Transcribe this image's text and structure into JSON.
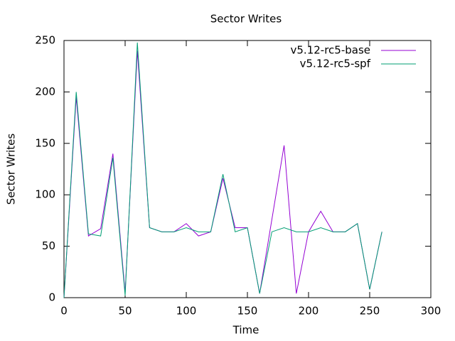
{
  "chart_data": {
    "type": "line",
    "title": "Sector Writes",
    "x_label": "Time",
    "y_label": "Sector Writes",
    "x": [
      0,
      10,
      20,
      30,
      40,
      50,
      60,
      70,
      80,
      90,
      100,
      110,
      120,
      130,
      140,
      150,
      160,
      170,
      180,
      190,
      200,
      210,
      220,
      230,
      240,
      250,
      260
    ],
    "series": [
      {
        "name": "v5.12-rc5-base",
        "color": "#9400d3",
        "values": [
          0,
          195,
          60,
          67,
          140,
          5,
          240,
          68,
          64,
          64,
          72,
          60,
          64,
          116,
          68,
          68,
          4,
          76,
          148,
          4,
          64,
          84,
          64,
          64,
          72,
          8,
          64
        ]
      },
      {
        "name": "v5.12-rc5-spf",
        "color": "#009e73",
        "values": [
          0,
          200,
          62,
          60,
          136,
          2,
          248,
          68,
          64,
          64,
          68,
          64,
          64,
          120,
          64,
          68,
          4,
          64,
          68,
          64,
          64,
          68,
          64,
          64,
          72,
          8,
          64
        ]
      }
    ],
    "xlim": [
      0,
      300
    ],
    "xticks": [
      0,
      50,
      100,
      150,
      200,
      250,
      300
    ],
    "ylim": [
      0,
      250
    ],
    "yticks": [
      0,
      50,
      100,
      150,
      200,
      250
    ],
    "legend": "top-right",
    "grid": false
  }
}
